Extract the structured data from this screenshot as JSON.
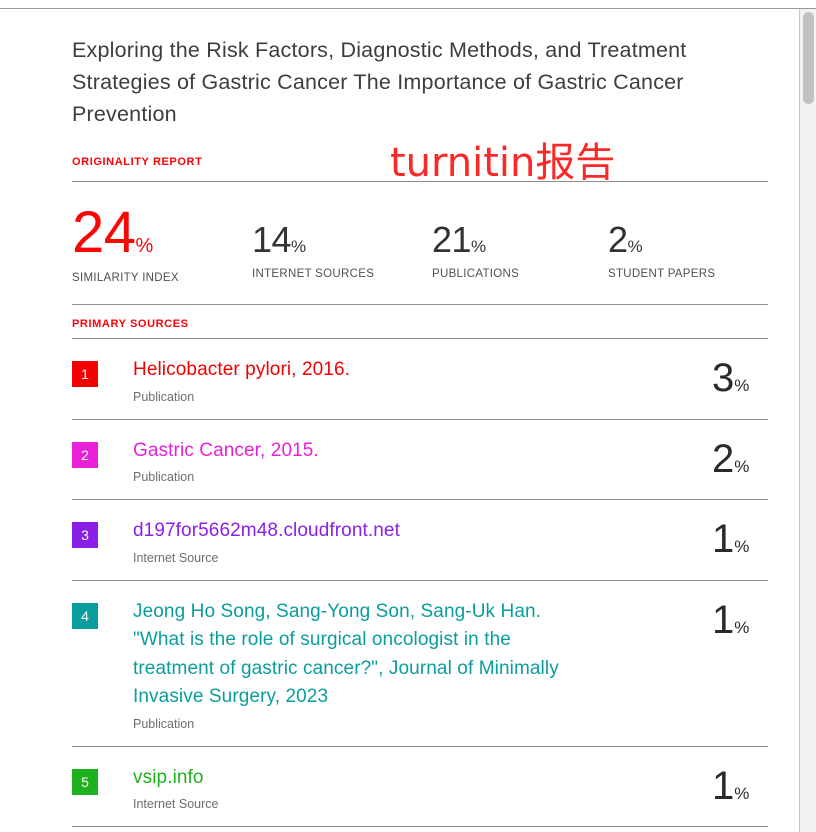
{
  "watermark": {
    "text": "turnitin报告",
    "color": "#fb2828"
  },
  "document": {
    "title": "Exploring the Risk Factors, Diagnostic Methods, and Treatment Strategies of Gastric Cancer The Importance of Gastric Cancer Prevention"
  },
  "report": {
    "accent_color": "#fb0007",
    "originality_label": "ORIGINALITY REPORT",
    "primary_sources_label": "PRIMARY SOURCES",
    "percent_sign": "%",
    "stats": [
      {
        "value": "24",
        "unit": "%",
        "label": "SIMILARITY INDEX",
        "color": "#f90606"
      },
      {
        "value": "14",
        "unit": "%",
        "label": "INTERNET SOURCES",
        "color": "#333333"
      },
      {
        "value": "21",
        "unit": "%",
        "label": "PUBLICATIONS",
        "color": "#333333"
      },
      {
        "value": "2",
        "unit": "%",
        "label": "STUDENT PAPERS",
        "color": "#333333"
      }
    ],
    "sources": [
      {
        "index": "1",
        "color": "#f40000",
        "title": "Helicobacter pylori, 2016.",
        "type": "Publication",
        "percent": "3"
      },
      {
        "index": "2",
        "color": "#e820d8",
        "title": "Gastric Cancer, 2015.",
        "type": "Publication",
        "percent": "2"
      },
      {
        "index": "3",
        "color": "#8a1fe8",
        "title": "d197for5662m48.cloudfront.net",
        "type": "Internet Source",
        "percent": "1"
      },
      {
        "index": "4",
        "color": "#0a9d9d",
        "title": "Jeong Ho Song, Sang-Yong Son, Sang-Uk Han. \"What is the role of surgical oncologist in the treatment of gastric cancer?\", Journal of Minimally Invasive Surgery, 2023",
        "type": "Publication",
        "percent": "1"
      },
      {
        "index": "5",
        "color": "#1db21d",
        "title": "vsip.info",
        "type": "Internet Source",
        "percent": "1"
      }
    ]
  }
}
